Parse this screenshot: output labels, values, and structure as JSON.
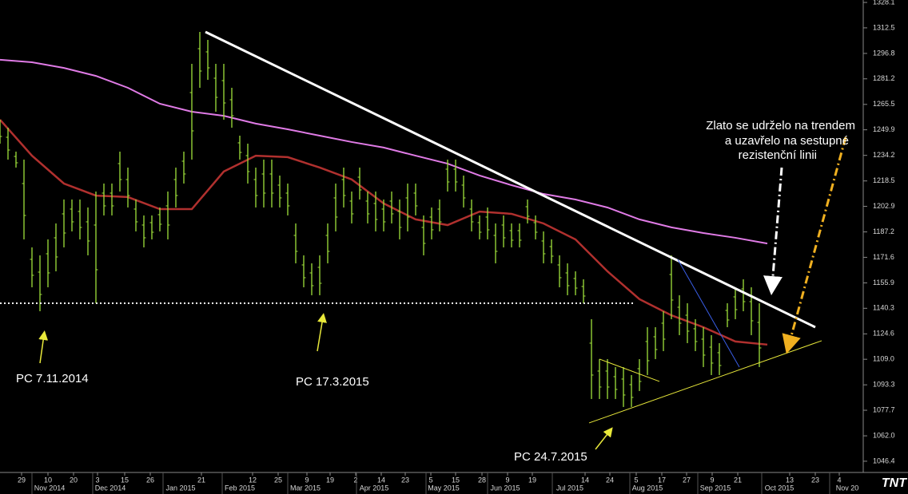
{
  "chart_data": {
    "type": "hilo",
    "annotation": [
      "Zlato se udrželo na trendem",
      "a uzavřelo na sestupné",
      "rezistenční linii"
    ],
    "callouts": [
      "PC 7.11.2014",
      "PC 17.3.2015",
      "PC 24.7.2015"
    ],
    "logo": "TNT",
    "color": "#9fe03a",
    "high": [
      1256.1,
      1251.2,
      1236.5,
      1231.6,
      1177.7,
      1172.8,
      1182.6,
      1192.4,
      1207.1,
      1207.1,
      1207.1,
      1202.2,
      1212.0,
      1216.9,
      1216.9,
      1236.5,
      1226.7,
      1207.1,
      1197.3,
      1197.3,
      1202.2,
      1212.0,
      1226.7,
      1236.5,
      1290.4,
      1310.0,
      1305.1,
      1290.4,
      1290.4,
      1275.7,
      1246.3,
      1241.4,
      1226.7,
      1231.6,
      1231.6,
      1221.8,
      1216.9,
      1192.4,
      1172.8,
      1167.9,
      1172.8,
      1192.4,
      1216.9,
      1226.7,
      1212.0,
      1226.7,
      1212.0,
      1212.0,
      1207.1,
      1212.0,
      1207.1,
      1216.9,
      1216.9,
      1197.3,
      1202.2,
      1207.1,
      1231.6,
      1231.6,
      1221.8,
      1207.1,
      1197.3,
      1202.2,
      1192.4,
      1197.3,
      1192.4,
      1192.4,
      1207.1,
      1197.3,
      1187.5,
      1182.6,
      1172.8,
      1167.9,
      1163.0,
      1158.1,
      1133.6,
      1109.1,
      1109.1,
      1104.2,
      1104.2,
      1099.3,
      1109.1,
      1128.7,
      1128.7,
      1138.5,
      1172.8,
      1148.3,
      1143.4,
      1133.6,
      1128.7,
      1123.8,
      1118.9,
      1143.4,
      1153.2,
      1158.1,
      1153.2,
      1143.4
    ],
    "low": [
      1241.4,
      1231.6,
      1226.7,
      1182.6,
      1153.2,
      1138.5,
      1153.2,
      1163.0,
      1177.7,
      1187.5,
      1182.6,
      1172.8,
      1143.4,
      1197.3,
      1197.3,
      1212.0,
      1202.2,
      1187.5,
      1177.7,
      1182.6,
      1187.5,
      1182.6,
      1202.2,
      1216.9,
      1231.6,
      1275.7,
      1280.6,
      1261.0,
      1256.1,
      1251.2,
      1231.6,
      1216.9,
      1202.2,
      1202.2,
      1202.2,
      1202.2,
      1197.3,
      1167.9,
      1153.2,
      1148.3,
      1148.3,
      1167.9,
      1187.5,
      1202.2,
      1192.4,
      1207.1,
      1192.4,
      1187.5,
      1187.5,
      1192.4,
      1182.6,
      1187.5,
      1197.3,
      1172.8,
      1182.6,
      1187.5,
      1212.0,
      1212.0,
      1202.2,
      1187.5,
      1182.6,
      1182.6,
      1167.9,
      1177.7,
      1177.7,
      1177.7,
      1192.4,
      1182.6,
      1167.9,
      1167.9,
      1153.2,
      1148.3,
      1148.3,
      1143.4,
      1084.6,
      1084.6,
      1084.6,
      1084.6,
      1079.7,
      1079.7,
      1089.5,
      1099.3,
      1109.1,
      1114.0,
      1133.6,
      1123.8,
      1118.9,
      1114.0,
      1104.2,
      1099.3,
      1099.3,
      1128.7,
      1133.6,
      1138.5,
      1123.8,
      1104.2
    ],
    "ma_x": [
      0,
      4,
      8,
      12,
      16,
      20,
      24,
      28,
      32,
      36,
      40,
      44,
      48,
      52,
      56,
      60,
      64,
      68,
      72,
      76,
      80,
      84,
      88,
      92,
      96
    ],
    "moving_averages": [
      {
        "color": "#e07be6",
        "values": [
          1292.9,
          1291.4,
          1287.9,
          1283.0,
          1275.7,
          1265.9,
          1261.0,
          1258.5,
          1253.7,
          1250.2,
          1246.3,
          1242.4,
          1239.0,
          1234.0,
          1229.1,
          1221.8,
          1215.9,
          1210.5,
          1207.1,
          1202.2,
          1194.9,
          1190.0,
          1186.5,
          1183.6,
          1180.1
        ]
      },
      {
        "color": "#b0302e",
        "values": [
          1256.1,
          1234.0,
          1216.9,
          1209.5,
          1208.6,
          1201.2,
          1201.2,
          1224.3,
          1234.0,
          1233.1,
          1226.7,
          1219.4,
          1204.7,
          1194.9,
          1191.4,
          1199.7,
          1198.3,
          1192.4,
          1182.6,
          1163.0,
          1145.9,
          1136.0,
          1128.7,
          1119.9,
          1118.0
        ]
      }
    ],
    "lines": [
      {
        "color": "#ffffff",
        "width": 3,
        "x": [
          25.7,
          102
        ],
        "values": [
          1310.0,
          1128.7
        ]
      },
      {
        "color": "#ffffff",
        "width": 2,
        "dash": true,
        "x": [
          0,
          79.5
        ],
        "values": [
          1143.4,
          1143.4
        ]
      },
      {
        "color": "#e8e83a",
        "width": 1,
        "x": [
          73.7,
          102.8
        ],
        "values": [
          1069.9,
          1120.4
        ]
      },
      {
        "color": "#e8e83a",
        "width": 1,
        "x": [
          75,
          82.5
        ],
        "values": [
          1109.1,
          1095.4
        ]
      },
      {
        "color": "#3a5ee8",
        "width": 1,
        "x": [
          84.8,
          92.5
        ],
        "values": [
          1170.3,
          1104.2
        ]
      }
    ],
    "xlim": [
      0,
      108
    ],
    "ylim": [
      1329.6,
      1039.5
    ],
    "xticks": [
      {
        "value": 2.7,
        "label": "29"
      },
      {
        "value": 6,
        "label": "10"
      },
      {
        "value": 9.2,
        "label": "20"
      },
      {
        "value": 12.2,
        "label": "3"
      },
      {
        "value": 15.6,
        "label": "15"
      },
      {
        "value": 18.8,
        "label": "26"
      },
      {
        "value": 25.2,
        "label": "21"
      },
      {
        "value": 31.6,
        "label": "12"
      },
      {
        "value": 34.8,
        "label": "25"
      },
      {
        "value": 38.4,
        "label": "9"
      },
      {
        "value": 41.3,
        "label": "19"
      },
      {
        "value": 44.5,
        "label": "2"
      },
      {
        "value": 47.7,
        "label": "14"
      },
      {
        "value": 50.7,
        "label": "23"
      },
      {
        "value": 53.9,
        "label": "5"
      },
      {
        "value": 57,
        "label": "15"
      },
      {
        "value": 60.3,
        "label": "28"
      },
      {
        "value": 63.5,
        "label": "9"
      },
      {
        "value": 66.6,
        "label": "19"
      },
      {
        "value": 73.2,
        "label": "14"
      },
      {
        "value": 76.3,
        "label": "24"
      },
      {
        "value": 79.6,
        "label": "5"
      },
      {
        "value": 82.8,
        "label": "17"
      },
      {
        "value": 85.9,
        "label": "27"
      },
      {
        "value": 89.1,
        "label": "9"
      },
      {
        "value": 92.3,
        "label": "21"
      },
      {
        "value": 98.8,
        "label": "13"
      },
      {
        "value": 102,
        "label": "23"
      },
      {
        "value": 105,
        "label": "4"
      }
    ],
    "month_ticks": [
      {
        "value": 6.2,
        "label": "Nov 2014"
      },
      {
        "value": 13.8,
        "label": "Dec 2014"
      },
      {
        "value": 22.6,
        "label": "Jan 2015"
      },
      {
        "value": 30,
        "label": "Feb 2015"
      },
      {
        "value": 38.2,
        "label": "Mar 2015"
      },
      {
        "value": 46.8,
        "label": "Apr 2015"
      },
      {
        "value": 55.5,
        "label": "May 2015"
      },
      {
        "value": 63.2,
        "label": "Jun 2015"
      },
      {
        "value": 71.3,
        "label": "Jul 2015"
      },
      {
        "value": 81,
        "label": "Aug 2015"
      },
      {
        "value": 89.5,
        "label": "Sep 2015"
      },
      {
        "value": 97.5,
        "label": "Oct 2015"
      },
      {
        "value": 106,
        "label": "Nov 20"
      }
    ],
    "yticks": [
      1328.1,
      1312.5,
      1296.8,
      1281.2,
      1265.5,
      1249.9,
      1234.2,
      1218.5,
      1202.9,
      1187.2,
      1171.6,
      1155.9,
      1140.3,
      1124.6,
      {
        "value": 1109,
        "label": "1109.0"
      },
      1093.3,
      1077.7,
      {
        "value": 1062,
        "label": "1062.0"
      },
      1046.4
    ]
  }
}
